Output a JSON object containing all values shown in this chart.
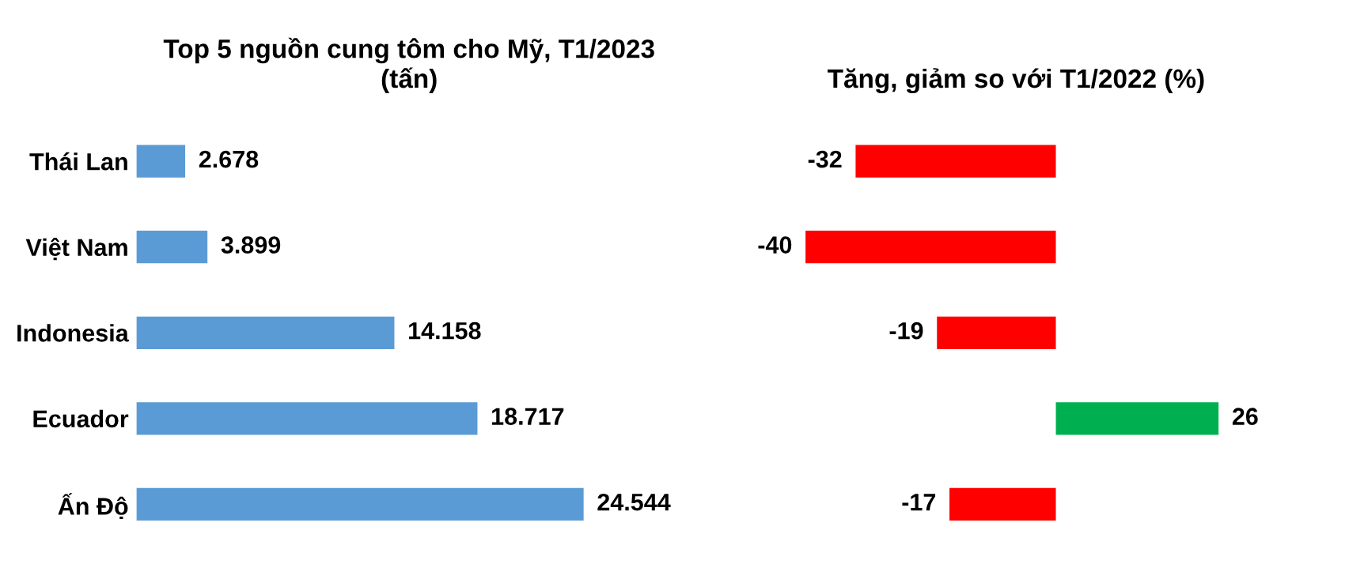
{
  "chart_data": [
    {
      "type": "bar",
      "orientation": "horizontal",
      "title": "Top 5 nguồn cung tôm cho Mỹ, T1/2023\n(tấn)",
      "categories": [
        "Thái Lan",
        "Việt Nam",
        "Indonesia",
        "Ecuador",
        "Ấn Độ"
      ],
      "series": [
        {
          "color": "#5b9bd5",
          "values": [
            2678,
            3899,
            14158,
            18717,
            24544
          ],
          "value_labels": [
            "2.678",
            "3.899",
            "14.158",
            "18.717",
            "24.544"
          ]
        }
      ],
      "grid": false,
      "legend": false
    },
    {
      "type": "bar",
      "orientation": "horizontal",
      "title": "Tăng, giảm so với T1/2022 (%)",
      "categories": [
        null,
        null,
        null,
        null,
        null
      ],
      "series": [
        {
          "colors": [
            "#ff0000",
            "#ff0000",
            "#ff0000",
            "#00b050",
            "#ff0000"
          ],
          "values": [
            -32,
            -40,
            -19,
            26,
            -17
          ]
        }
      ],
      "data_labels": true,
      "grid": false,
      "legend": false
    }
  ]
}
